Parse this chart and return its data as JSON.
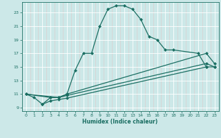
{
  "bg_color": "#cce8e8",
  "grid_color": "#b8d8d8",
  "line_color": "#1a6e62",
  "marker_style": "D",
  "marker_size": 2.0,
  "line_width": 0.9,
  "xlabel": "Humidex (Indice chaleur)",
  "xlim": [
    -0.5,
    23.5
  ],
  "ylim": [
    8.5,
    24.5
  ],
  "xticks": [
    0,
    1,
    2,
    3,
    4,
    5,
    6,
    7,
    8,
    9,
    10,
    11,
    12,
    13,
    14,
    15,
    16,
    17,
    18,
    19,
    20,
    21,
    22,
    23
  ],
  "yticks": [
    9,
    11,
    13,
    15,
    17,
    19,
    21,
    23
  ],
  "curve_main": {
    "x": [
      0,
      1,
      2,
      3,
      4,
      5,
      6,
      7,
      8,
      9,
      10,
      11,
      12,
      13,
      14,
      15,
      16,
      17,
      18,
      21,
      22
    ],
    "y": [
      11,
      10.5,
      9.5,
      10.5,
      10.5,
      11,
      14.5,
      17,
      17,
      21,
      23.5,
      24.0,
      24.0,
      23.5,
      22.0,
      19.5,
      19.0,
      17.5,
      17.5,
      17.0,
      15.0
    ]
  },
  "curve_top": {
    "x": [
      0,
      4,
      5,
      22,
      23
    ],
    "y": [
      11,
      10.5,
      11,
      17.0,
      15.5
    ]
  },
  "curve_mid": {
    "x": [
      0,
      3,
      4,
      5,
      22,
      23
    ],
    "y": [
      11,
      10.5,
      10.5,
      10.8,
      15.5,
      15.0
    ]
  },
  "curve_bot": {
    "x": [
      2,
      3,
      4,
      5,
      22,
      23
    ],
    "y": [
      9.5,
      10.0,
      10.2,
      10.4,
      15.0,
      15.0
    ]
  }
}
